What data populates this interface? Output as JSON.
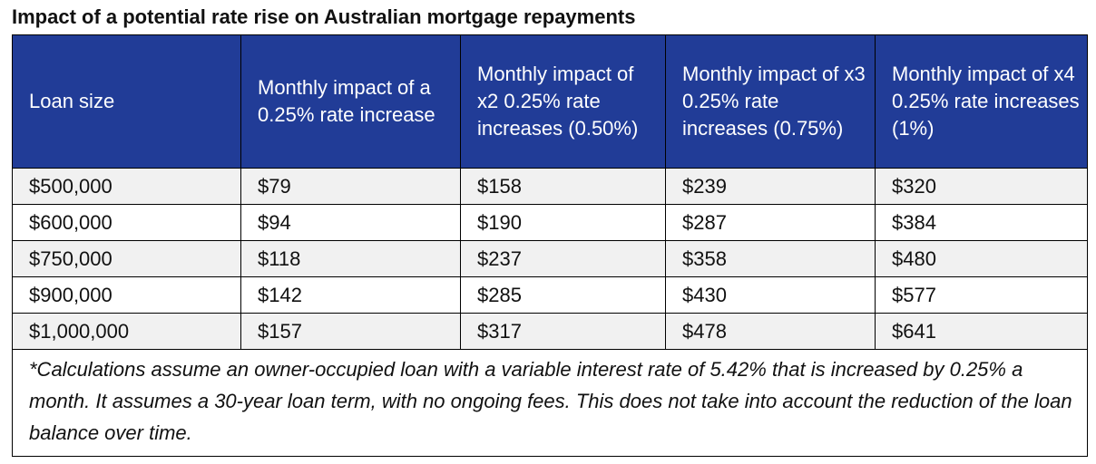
{
  "title": "Impact of a potential rate rise on Australian mortgage repayments",
  "colors": {
    "header_bg": "#213c97",
    "header_text": "#ffffff",
    "row_shade": "#f1f1f1"
  },
  "chart_data": {
    "type": "table",
    "title": "Impact of a potential rate rise on Australian mortgage repayments",
    "columns": [
      "Loan size",
      "Monthly impact of a 0.25% rate increase",
      "Monthly impact of x2 0.25% rate increases (0.50%)",
      "Monthly impact of x3 0.25% rate increases (0.75%)",
      "Monthly impact of x4 0.25% rate increases (1%)"
    ],
    "rows": [
      [
        "$500,000",
        "$79",
        "$158",
        "$239",
        "$320"
      ],
      [
        "$600,000",
        "$94",
        "$190",
        "$287",
        "$384"
      ],
      [
        "$750,000",
        "$118",
        "$237",
        "$358",
        "$480"
      ],
      [
        "$900,000",
        "$142",
        "$285",
        "$430",
        "$577"
      ],
      [
        "$1,000,000",
        "$157",
        "$317",
        "$478",
        "$641"
      ]
    ],
    "footnote": "*Calculations assume an owner-occupied loan with a variable interest rate of 5.42% that is increased by 0.25% a month. It assumes a 30-year loan term, with no ongoing fees. This does not take into account the reduction of the loan balance over time."
  }
}
